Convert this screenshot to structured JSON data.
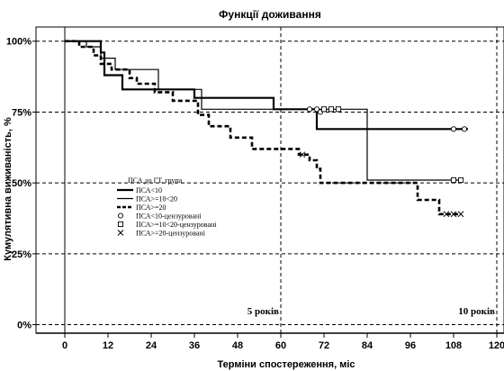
{
  "chart_data": {
    "type": "line",
    "title": "Функції доживання",
    "xlabel": "Терміни спостереження, міс",
    "ylabel": "Кумулятивна виживаність, %",
    "x_ticks": [
      0,
      12,
      24,
      36,
      48,
      60,
      72,
      84,
      96,
      108,
      120
    ],
    "y_ticks": [
      {
        "value": 0,
        "label": "0%"
      },
      {
        "value": 25,
        "label": "25%"
      },
      {
        "value": 50,
        "label": "50%"
      },
      {
        "value": 75,
        "label": "75%"
      },
      {
        "value": 100,
        "label": "100%"
      }
    ],
    "xlim": [
      -8,
      122
    ],
    "ylim": [
      -3,
      105
    ],
    "grid": "dashed horizontal lines at 0%, 25%, 50%, 75%, 100%; dashed vertical lines at 60 and 120",
    "annotations": [
      {
        "text": "5 років",
        "x": 60,
        "y": 5
      },
      {
        "text": "10 років",
        "x": 120,
        "y": 5
      }
    ],
    "legend": {
      "title": "ПСА до ГТ, група",
      "position": "center-left",
      "entries": [
        "ПСА<10",
        "ПСА>=10<20",
        "ПСА>=20",
        "ПСА<10-цензуровані",
        "ПСА>=10<20-цензуровані",
        "ПСА>=20-цензуровані"
      ]
    },
    "series": [
      {
        "name": "ПСА<10",
        "style": "solid-thick",
        "steps": [
          [
            0,
            100
          ],
          [
            10,
            100
          ],
          [
            10,
            96
          ],
          [
            11,
            96
          ],
          [
            11,
            88
          ],
          [
            16,
            88
          ],
          [
            16,
            83
          ],
          [
            36,
            83
          ],
          [
            36,
            80
          ],
          [
            40,
            80
          ],
          [
            40,
            80
          ],
          [
            58,
            80
          ],
          [
            58,
            76
          ],
          [
            68,
            76
          ],
          [
            68,
            76
          ],
          [
            70,
            76
          ],
          [
            70,
            69
          ],
          [
            112,
            69
          ]
        ],
        "censored": [
          [
            68,
            76
          ],
          [
            70,
            76
          ],
          [
            71,
            75
          ],
          [
            108,
            69
          ],
          [
            111,
            69
          ]
        ]
      },
      {
        "name": "ПСА>=10<20",
        "style": "solid-thin",
        "steps": [
          [
            0,
            100
          ],
          [
            6,
            100
          ],
          [
            6,
            98
          ],
          [
            10,
            98
          ],
          [
            10,
            94
          ],
          [
            14,
            94
          ],
          [
            14,
            90
          ],
          [
            26,
            90
          ],
          [
            26,
            83
          ],
          [
            38,
            83
          ],
          [
            38,
            76
          ],
          [
            84,
            76
          ],
          [
            84,
            74
          ],
          [
            84,
            51
          ],
          [
            110,
            51
          ]
        ],
        "censored": [
          [
            72,
            76
          ],
          [
            74,
            76
          ],
          [
            76,
            76
          ],
          [
            108,
            51
          ],
          [
            110,
            51
          ]
        ]
      },
      {
        "name": "ПСА>=20",
        "style": "dashed-thick",
        "steps": [
          [
            0,
            100
          ],
          [
            4,
            100
          ],
          [
            4,
            98
          ],
          [
            8,
            98
          ],
          [
            8,
            95
          ],
          [
            10,
            95
          ],
          [
            10,
            92
          ],
          [
            13,
            92
          ],
          [
            13,
            90
          ],
          [
            18,
            90
          ],
          [
            18,
            87
          ],
          [
            20,
            87
          ],
          [
            20,
            85
          ],
          [
            25,
            85
          ],
          [
            25,
            82
          ],
          [
            30,
            82
          ],
          [
            30,
            79
          ],
          [
            37,
            79
          ],
          [
            37,
            74
          ],
          [
            40,
            74
          ],
          [
            40,
            70
          ],
          [
            46,
            70
          ],
          [
            46,
            66
          ],
          [
            52,
            66
          ],
          [
            52,
            62
          ],
          [
            65,
            62
          ],
          [
            65,
            60
          ],
          [
            68,
            60
          ],
          [
            68,
            58
          ],
          [
            70,
            58
          ],
          [
            70,
            55
          ],
          [
            71,
            55
          ],
          [
            71,
            50
          ],
          [
            98,
            50
          ],
          [
            98,
            44
          ],
          [
            104,
            44
          ],
          [
            104,
            39
          ],
          [
            110,
            39
          ]
        ],
        "censored": [
          [
            66,
            60
          ],
          [
            106,
            39
          ],
          [
            108,
            39
          ],
          [
            110,
            39
          ]
        ]
      }
    ]
  }
}
